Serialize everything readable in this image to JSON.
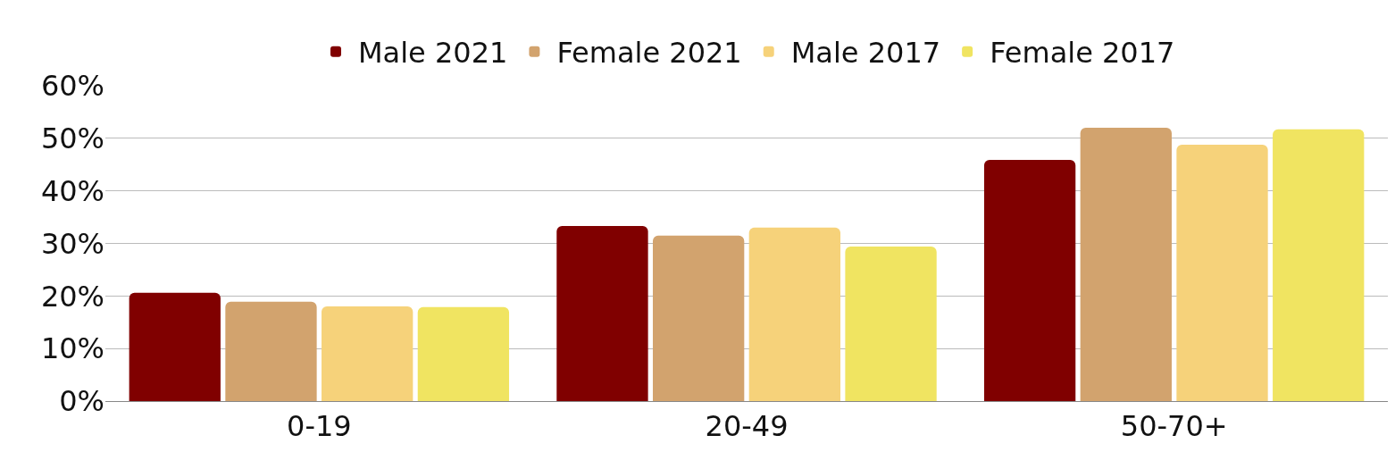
{
  "chart_data": {
    "type": "bar",
    "categories": [
      "0-19",
      "20-49",
      "50-70+"
    ],
    "series": [
      {
        "name": "Male 2021",
        "color": "#800000",
        "values": [
          20.6,
          33.3,
          45.9
        ]
      },
      {
        "name": "Female 2021",
        "color": "#d2a36e",
        "values": [
          18.9,
          31.5,
          52.0
        ]
      },
      {
        "name": "Male 2017",
        "color": "#f6d27a",
        "values": [
          18.0,
          33.0,
          48.8
        ]
      },
      {
        "name": "Female 2017",
        "color": "#f0e461",
        "values": [
          17.9,
          29.4,
          51.7
        ]
      }
    ],
    "ylim": [
      0,
      60
    ],
    "yticks": [
      {
        "value": 0,
        "label": "0%"
      },
      {
        "value": 10,
        "label": "10%"
      },
      {
        "value": 20,
        "label": "20%"
      },
      {
        "value": 30,
        "label": "30%"
      },
      {
        "value": 40,
        "label": "40%"
      },
      {
        "value": 50,
        "label": "50%"
      },
      {
        "value": 60,
        "label": "60%"
      }
    ],
    "grid": "y",
    "legend": "top"
  }
}
